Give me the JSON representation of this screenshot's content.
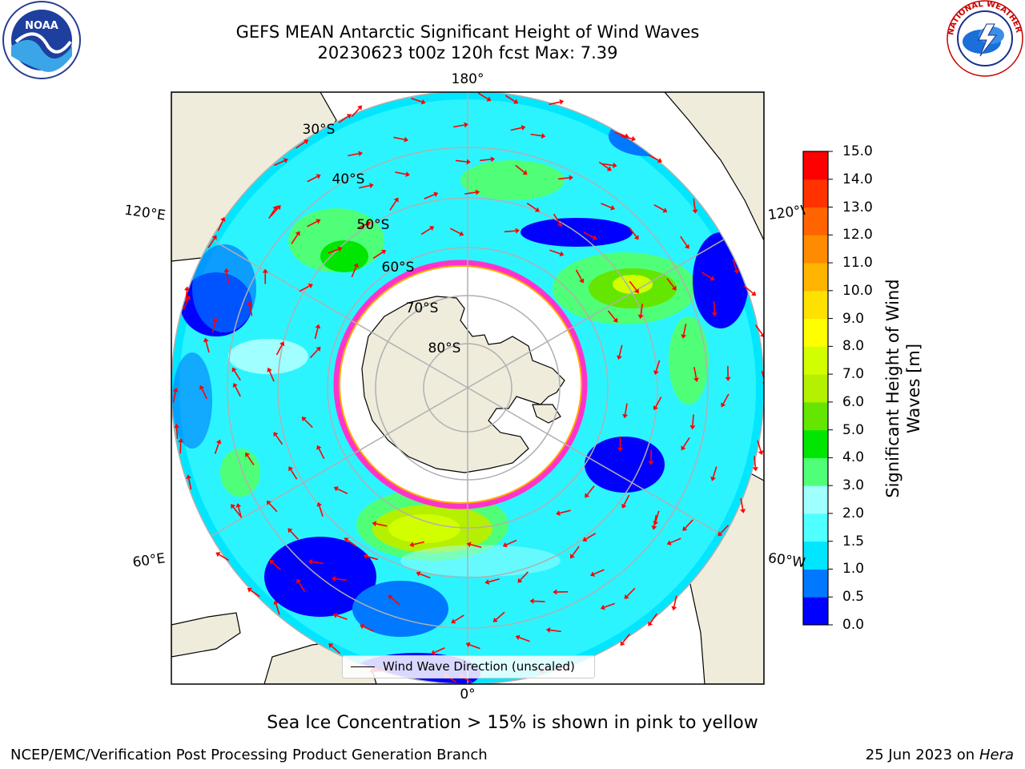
{
  "title": {
    "line1": "GEFS MEAN Antarctic Significant Height of Wind Waves",
    "line2": "20230623 t00z 120h fcst   Max: 7.39"
  },
  "logos": {
    "left": {
      "icon": "noaa-logo-icon",
      "text": "NOAA"
    },
    "right": {
      "icon": "nws-logo-icon",
      "text": "NATIONAL WEATHER SERVICE"
    }
  },
  "map": {
    "projection": "south-polar-stereographic",
    "lon_labels": {
      "top": "180°",
      "bottom": "0°",
      "left_upper": "120°E",
      "left_lower": "60°E",
      "right_upper": "120°W",
      "right_lower": "60°W"
    },
    "lat_labels": [
      "30°S",
      "40°S",
      "50°S",
      "60°S",
      "70°S",
      "80°S"
    ],
    "colors": {
      "land": "#efecdc",
      "ice": "#ffffff",
      "grid": "#b0b0b0",
      "ice_edge": [
        "#ff33cc",
        "#ffaa00",
        "#ffee00"
      ],
      "arrow": "#ff0000"
    }
  },
  "legend": {
    "label": "Wind Wave Direction (unscaled)"
  },
  "colorbar": {
    "label": "Significant Height of Wind Waves [m]",
    "label_line1": "Significant Height of Wind",
    "label_line2": "Waves [m]",
    "ticks": [
      "0.0",
      "0.5",
      "1.0",
      "1.5",
      "2.0",
      "3.0",
      "4.0",
      "5.0",
      "6.0",
      "7.0",
      "8.0",
      "9.0",
      "10.0",
      "11.0",
      "12.0",
      "13.0",
      "14.0",
      "15.0"
    ],
    "colors": [
      "#0000ff",
      "#0078ff",
      "#00e6ff",
      "#50ffff",
      "#a0ffff",
      "#50ff78",
      "#00e600",
      "#64e600",
      "#b4f000",
      "#d2ff00",
      "#ffff00",
      "#ffe100",
      "#ffb400",
      "#ff8c00",
      "#ff6400",
      "#ff3200",
      "#ff0000"
    ]
  },
  "caption": "Sea Ice Concentration > 15% is shown in pink to yellow",
  "footer": {
    "left": "NCEP/EMC/Verification Post Processing Product Generation Branch",
    "date": "25 Jun 2023 on",
    "system": "Hera"
  }
}
